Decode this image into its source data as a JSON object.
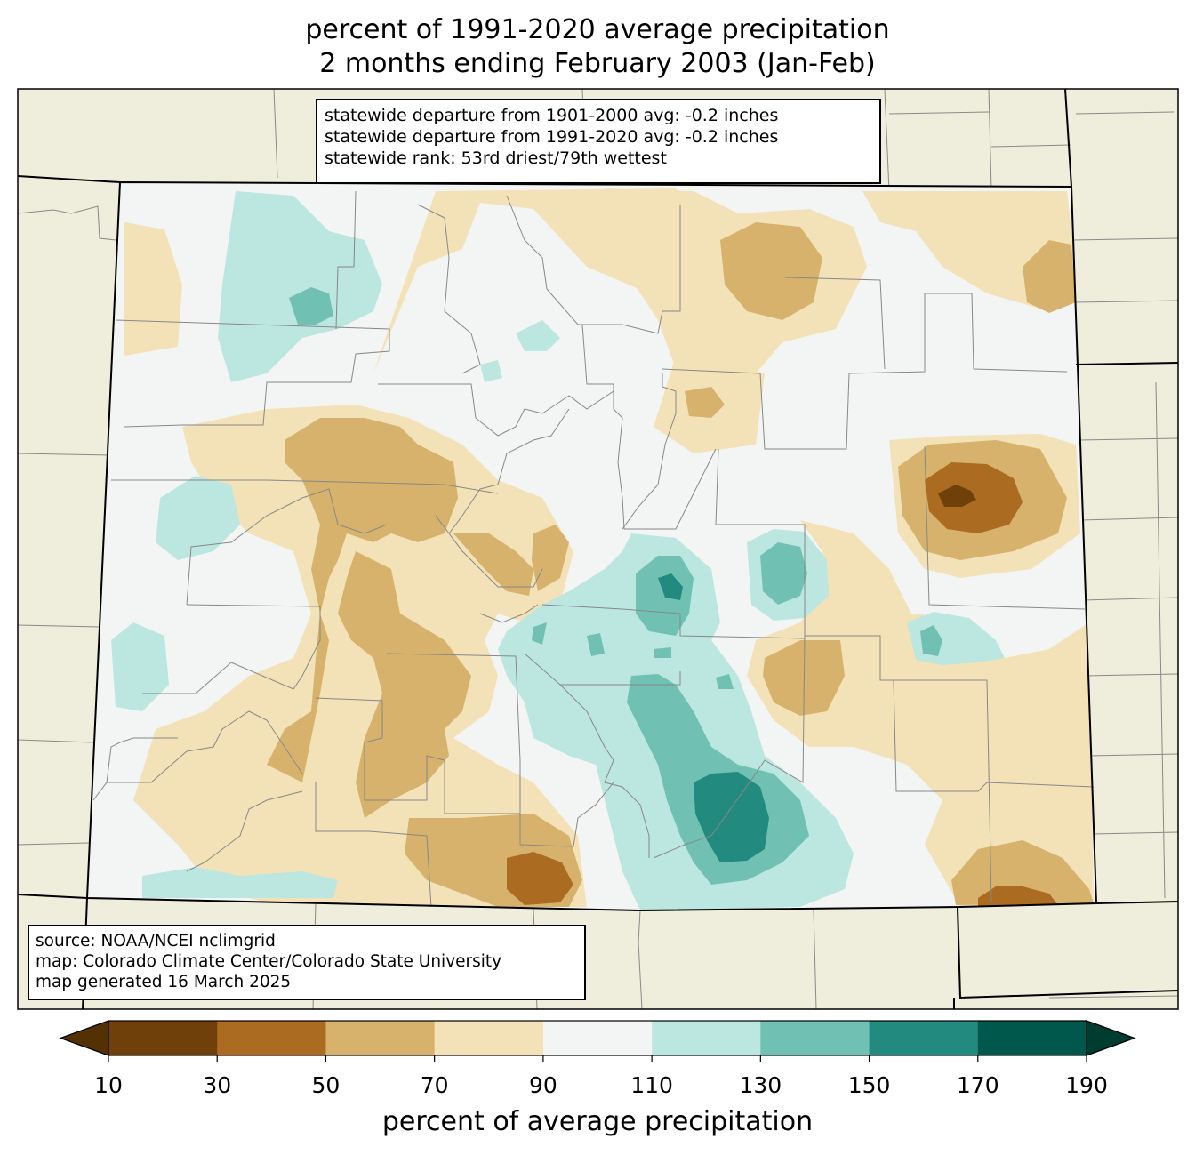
{
  "title_line1": "percent of 1991-2020 average precipitation",
  "title_line2": "2 months ending February 2003 (Jan-Feb)",
  "stats": {
    "line1": "statewide departure from 1901-2000 avg: -0.2 inches",
    "line2": "statewide departure from 1991-2020 avg: -0.2 inches",
    "line3": "statewide rank: 53rd driest/79th wettest"
  },
  "source": {
    "line1": "source: NOAA/NCEI nclimgrid",
    "line2": "map: Colorado Climate Center/Colorado State University",
    "line3": "map generated 16 March 2025"
  },
  "colorbar": {
    "label": "percent of average precipitation",
    "ticks": [
      "10",
      "30",
      "50",
      "70",
      "90",
      "110",
      "130",
      "150",
      "170",
      "190"
    ],
    "colors": [
      "#6f4009",
      "#ab6b21",
      "#d6b26c",
      "#f3e2b7",
      "#f3f5f4",
      "#bce6e0",
      "#70c1b3",
      "#238a7f",
      "#00574b"
    ],
    "under_color": "#543005",
    "over_color": "#003c30"
  },
  "colors": {
    "background_land": "#efeddb",
    "state_fill": "#f3f5f4"
  }
}
